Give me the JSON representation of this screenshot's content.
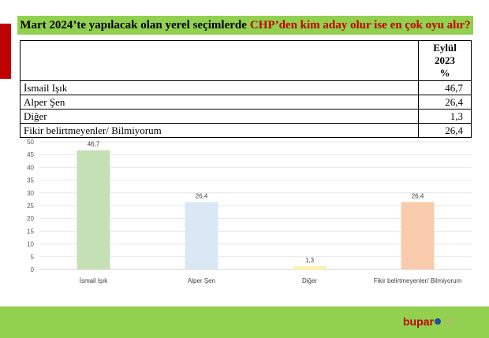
{
  "title": {
    "prefix": "Mart 2024’te yapılacak olan yerel seçimlerde",
    "highlight": "CHP’den kim aday olur ise en çok oyu alır?"
  },
  "table": {
    "header": {
      "line1": "Eylül",
      "line2": "2023",
      "line3": "%"
    },
    "rows": [
      {
        "label": "İsmail Işık",
        "value": "46,7"
      },
      {
        "label": "Alper Şen",
        "value": "26,4"
      },
      {
        "label": "Diğer",
        "value": "1,3"
      },
      {
        "label": "Fikir belirtmeyenler/ Bilmiyorum",
        "value": "26,4"
      }
    ]
  },
  "chart_data": {
    "type": "bar",
    "categories": [
      "İsmail Işık",
      "Alper Şen",
      "Diğer",
      "Fikir belirtmeyenler/ Bilmiyorum"
    ],
    "values": [
      46.7,
      26.4,
      1.3,
      26.4
    ],
    "data_labels": [
      "46,7",
      "26,4",
      "1,3",
      "26,4"
    ],
    "colors": [
      "#c5e0b4",
      "#dae8f6",
      "#fff2a8",
      "#f8cbad"
    ],
    "ylim": [
      0,
      50
    ],
    "yticks": [
      0,
      5,
      10,
      15,
      20,
      25,
      30,
      35,
      40,
      45,
      50
    ],
    "grid": true,
    "title": "",
    "xlabel": "",
    "ylabel": ""
  },
  "footer": {
    "logo_text": "bupar",
    "page_number": "40"
  },
  "colors": {
    "accent_green": "#92d050",
    "accent_red": "#c00000"
  }
}
